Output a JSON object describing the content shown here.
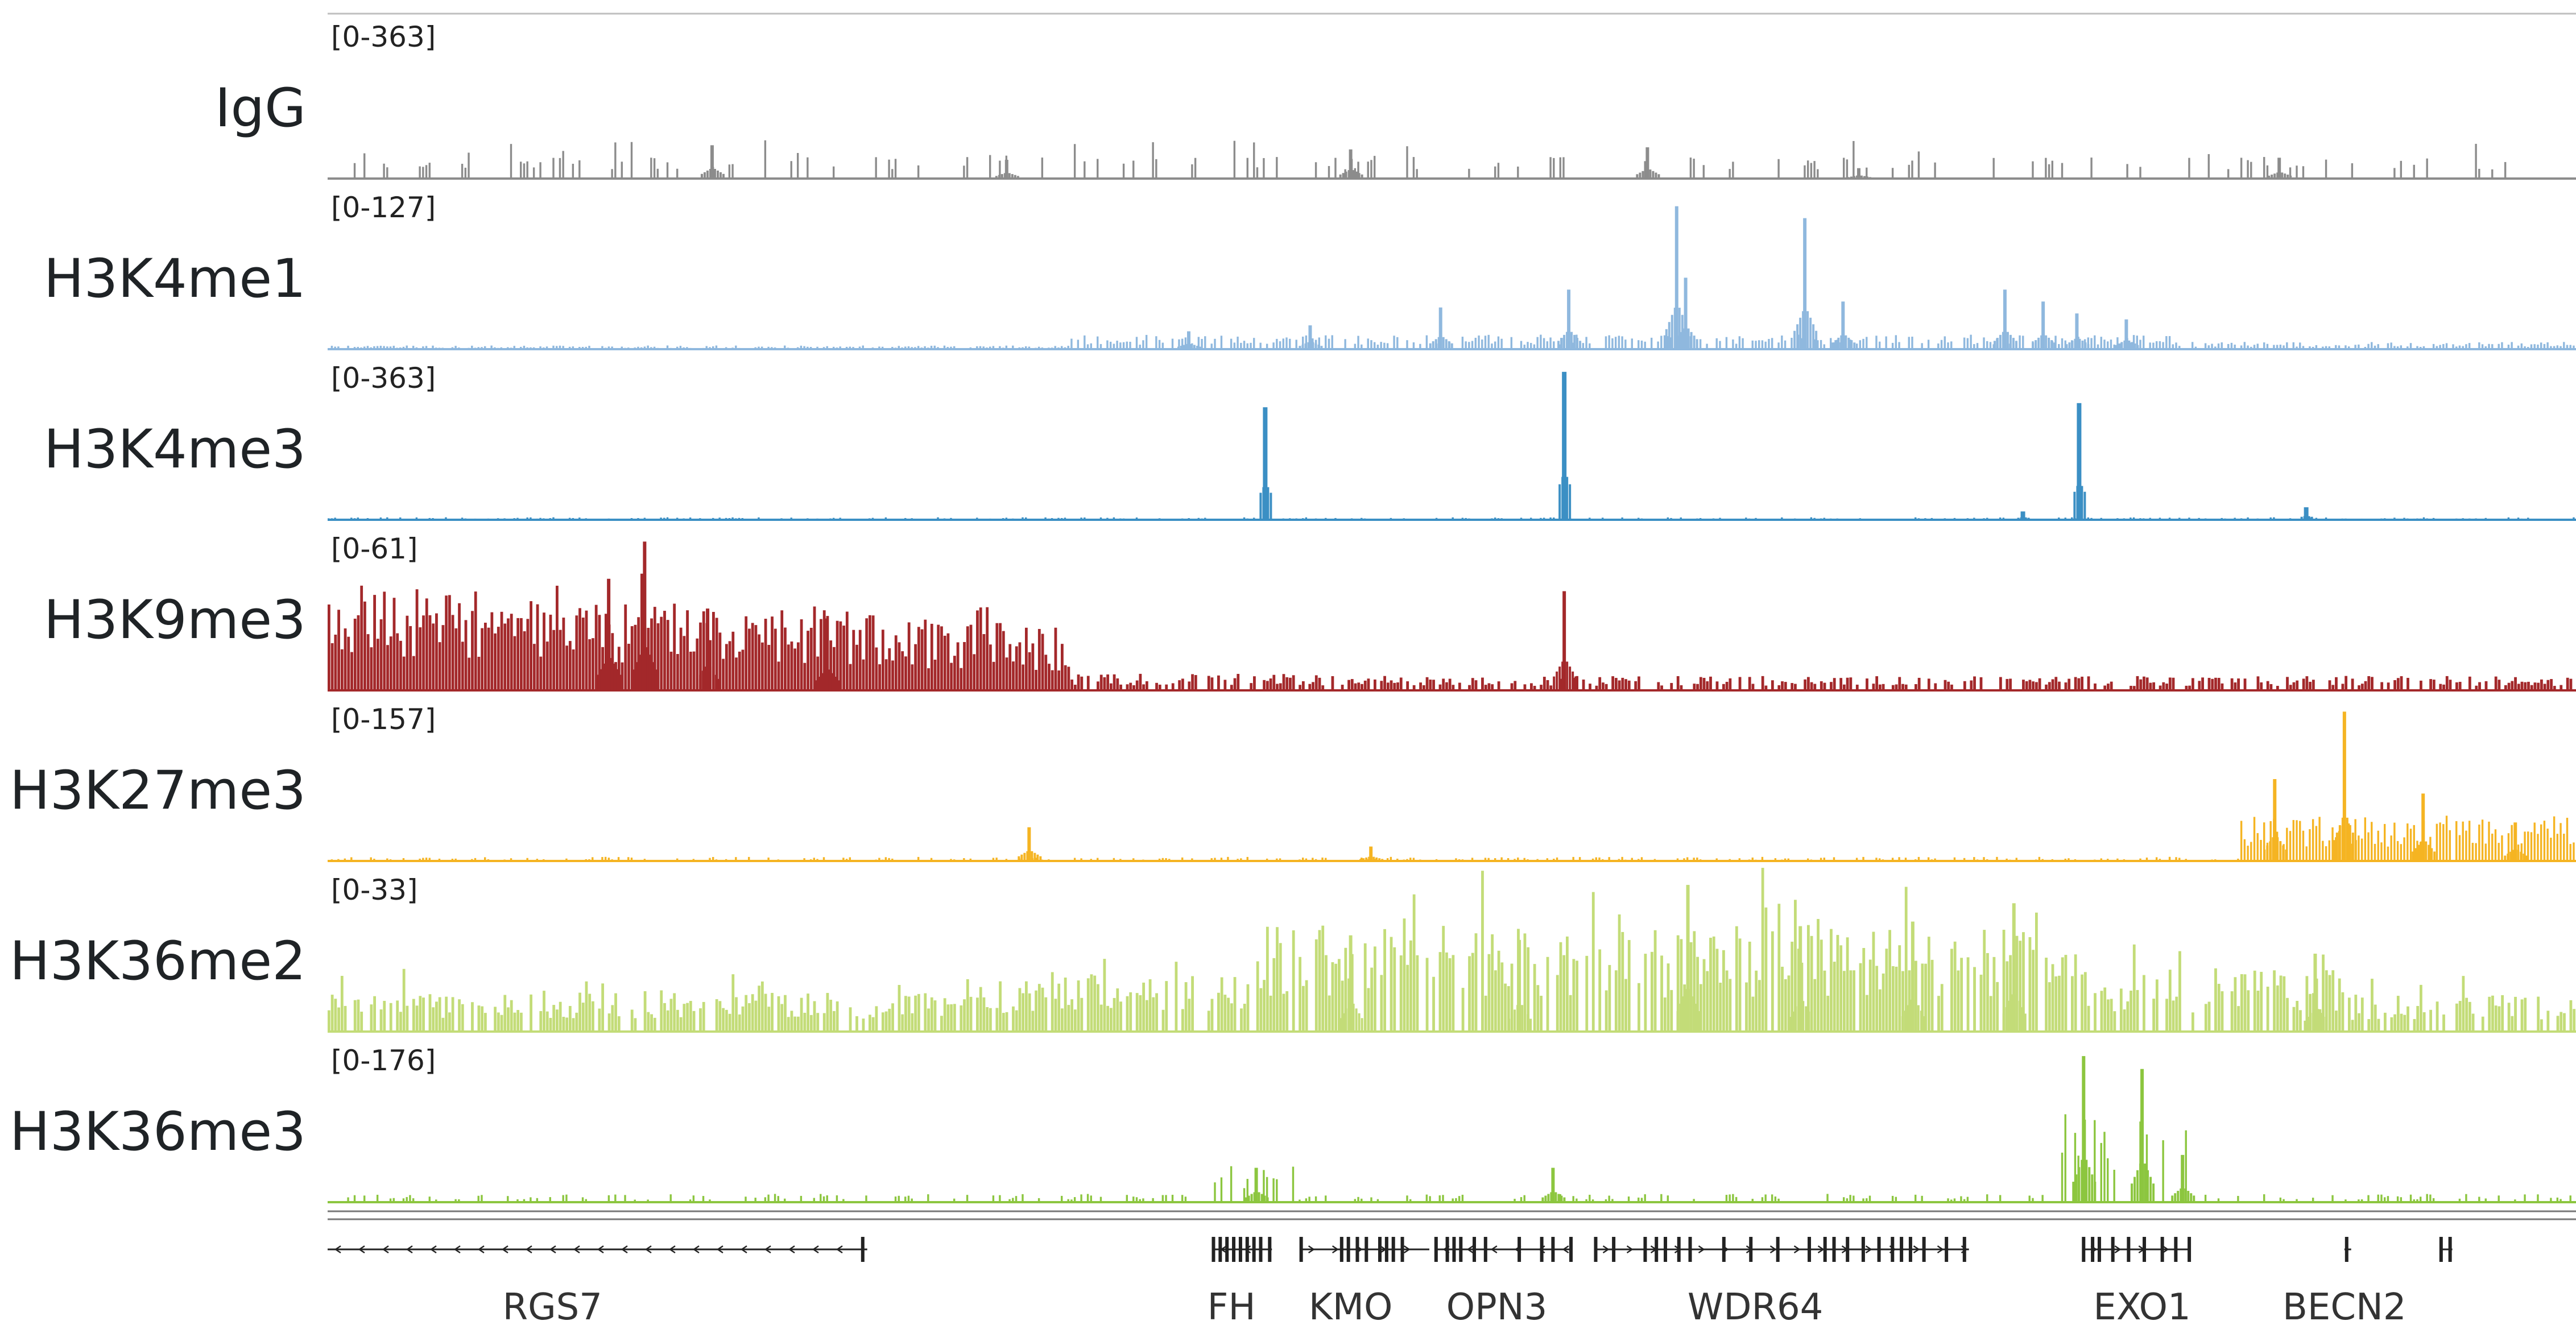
{
  "chart_data": {
    "type": "genome-browser-tracks",
    "tracks": [
      {
        "name": "IgG",
        "range": "[0-363]",
        "max": 363,
        "color": "#8c8c8c",
        "peaks": [
          {
            "x": 0.171,
            "v": 80
          },
          {
            "x": 0.302,
            "v": 45
          },
          {
            "x": 0.455,
            "v": 70
          },
          {
            "x": 0.587,
            "v": 75
          },
          {
            "x": 0.681,
            "v": 25
          },
          {
            "x": 0.868,
            "v": 50
          }
        ]
      },
      {
        "name": "H3K4me1",
        "range": "[0-127]",
        "max": 127,
        "color": "#8fb8de",
        "peaks": [
          {
            "x": 0.383,
            "v": 15
          },
          {
            "x": 0.437,
            "v": 20
          },
          {
            "x": 0.495,
            "v": 35
          },
          {
            "x": 0.552,
            "v": 50
          },
          {
            "x": 0.6,
            "v": 120
          },
          {
            "x": 0.604,
            "v": 60
          },
          {
            "x": 0.657,
            "v": 110
          },
          {
            "x": 0.674,
            "v": 40
          },
          {
            "x": 0.746,
            "v": 50
          },
          {
            "x": 0.763,
            "v": 40
          },
          {
            "x": 0.778,
            "v": 30
          },
          {
            "x": 0.8,
            "v": 25
          }
        ]
      },
      {
        "name": "H3K4me3",
        "range": "[0-363]",
        "max": 363,
        "color": "#3b8fc4",
        "peaks": [
          {
            "x": 0.417,
            "v": 270
          },
          {
            "x": 0.55,
            "v": 355
          },
          {
            "x": 0.779,
            "v": 280
          },
          {
            "x": 0.754,
            "v": 20
          },
          {
            "x": 0.88,
            "v": 30
          }
        ]
      },
      {
        "name": "H3K9me3",
        "range": "[0-61]",
        "max": 61,
        "color": "#a3282a",
        "peaks": [
          {
            "x": 0.125,
            "v": 45
          },
          {
            "x": 0.141,
            "v": 60
          },
          {
            "x": 0.169,
            "v": 33
          },
          {
            "x": 0.222,
            "v": 29
          },
          {
            "x": 0.55,
            "v": 40
          }
        ]
      },
      {
        "name": "H3K27me3",
        "range": "[0-157]",
        "max": 157,
        "color": "#f5b422",
        "peaks": [
          {
            "x": 0.312,
            "v": 35
          },
          {
            "x": 0.464,
            "v": 15
          },
          {
            "x": 0.866,
            "v": 85
          },
          {
            "x": 0.897,
            "v": 155
          },
          {
            "x": 0.932,
            "v": 70
          },
          {
            "x": 0.973,
            "v": 40
          }
        ]
      },
      {
        "name": "H3K36me2",
        "range": "[0-33]",
        "max": 33,
        "color": "#c3dc78",
        "peaks": [
          {
            "x": 0.455,
            "v": 21
          },
          {
            "x": 0.53,
            "v": 20
          },
          {
            "x": 0.605,
            "v": 32
          },
          {
            "x": 0.655,
            "v": 23
          },
          {
            "x": 0.705,
            "v": 24
          },
          {
            "x": 0.75,
            "v": 28
          },
          {
            "x": 0.884,
            "v": 17
          }
        ]
      },
      {
        "name": "H3K36me3",
        "range": "[0-176]",
        "max": 176,
        "color": "#8cc63f",
        "peaks": [
          {
            "x": 0.413,
            "v": 40
          },
          {
            "x": 0.545,
            "v": 40
          },
          {
            "x": 0.781,
            "v": 170
          },
          {
            "x": 0.807,
            "v": 155
          },
          {
            "x": 0.825,
            "v": 55
          }
        ]
      }
    ],
    "genes": [
      {
        "name": "RGS7",
        "start": 0.0,
        "end": 0.24,
        "label_x": 0.1,
        "strand": "-",
        "exons": [
          0.238
        ]
      },
      {
        "name": "FH",
        "start": 0.394,
        "end": 0.42,
        "label_x": 0.402,
        "strand": "-",
        "exons": [
          0.394,
          0.397,
          0.4,
          0.403,
          0.406,
          0.409,
          0.412,
          0.415,
          0.419
        ]
      },
      {
        "name": "KMO",
        "start": 0.433,
        "end": 0.49,
        "label_x": 0.455,
        "strand": "+",
        "exons": [
          0.433,
          0.451,
          0.454,
          0.458,
          0.462,
          0.468,
          0.471,
          0.474,
          0.478
        ]
      },
      {
        "name": "OPN3",
        "start": 0.493,
        "end": 0.553,
        "label_x": 0.52,
        "strand": "-",
        "exons": [
          0.493,
          0.498,
          0.501,
          0.504,
          0.51,
          0.515,
          0.53,
          0.54,
          0.545,
          0.553
        ]
      },
      {
        "name": "WDR64",
        "start": 0.564,
        "end": 0.73,
        "label_x": 0.635,
        "strand": "+",
        "exons": [
          0.564,
          0.572,
          0.586,
          0.591,
          0.595,
          0.601,
          0.606,
          0.621,
          0.633,
          0.645,
          0.659,
          0.666,
          0.67,
          0.676,
          0.683,
          0.69,
          0.696,
          0.7,
          0.704,
          0.71,
          0.72,
          0.728
        ]
      },
      {
        "name": "EXO1",
        "start": 0.781,
        "end": 0.828,
        "label_x": 0.807,
        "strand": "+",
        "exons": [
          0.781,
          0.785,
          0.788,
          0.794,
          0.801,
          0.808,
          0.816,
          0.822,
          0.828
        ]
      },
      {
        "name": "BECN2",
        "start": 0.897,
        "end": 0.9,
        "label_x": 0.897,
        "strand": "-",
        "exons": [
          0.898
        ]
      },
      {
        "name": "",
        "start": 0.94,
        "end": 0.945,
        "label_x": 0.942,
        "strand": "-",
        "exons": [
          0.94,
          0.944
        ]
      }
    ]
  }
}
